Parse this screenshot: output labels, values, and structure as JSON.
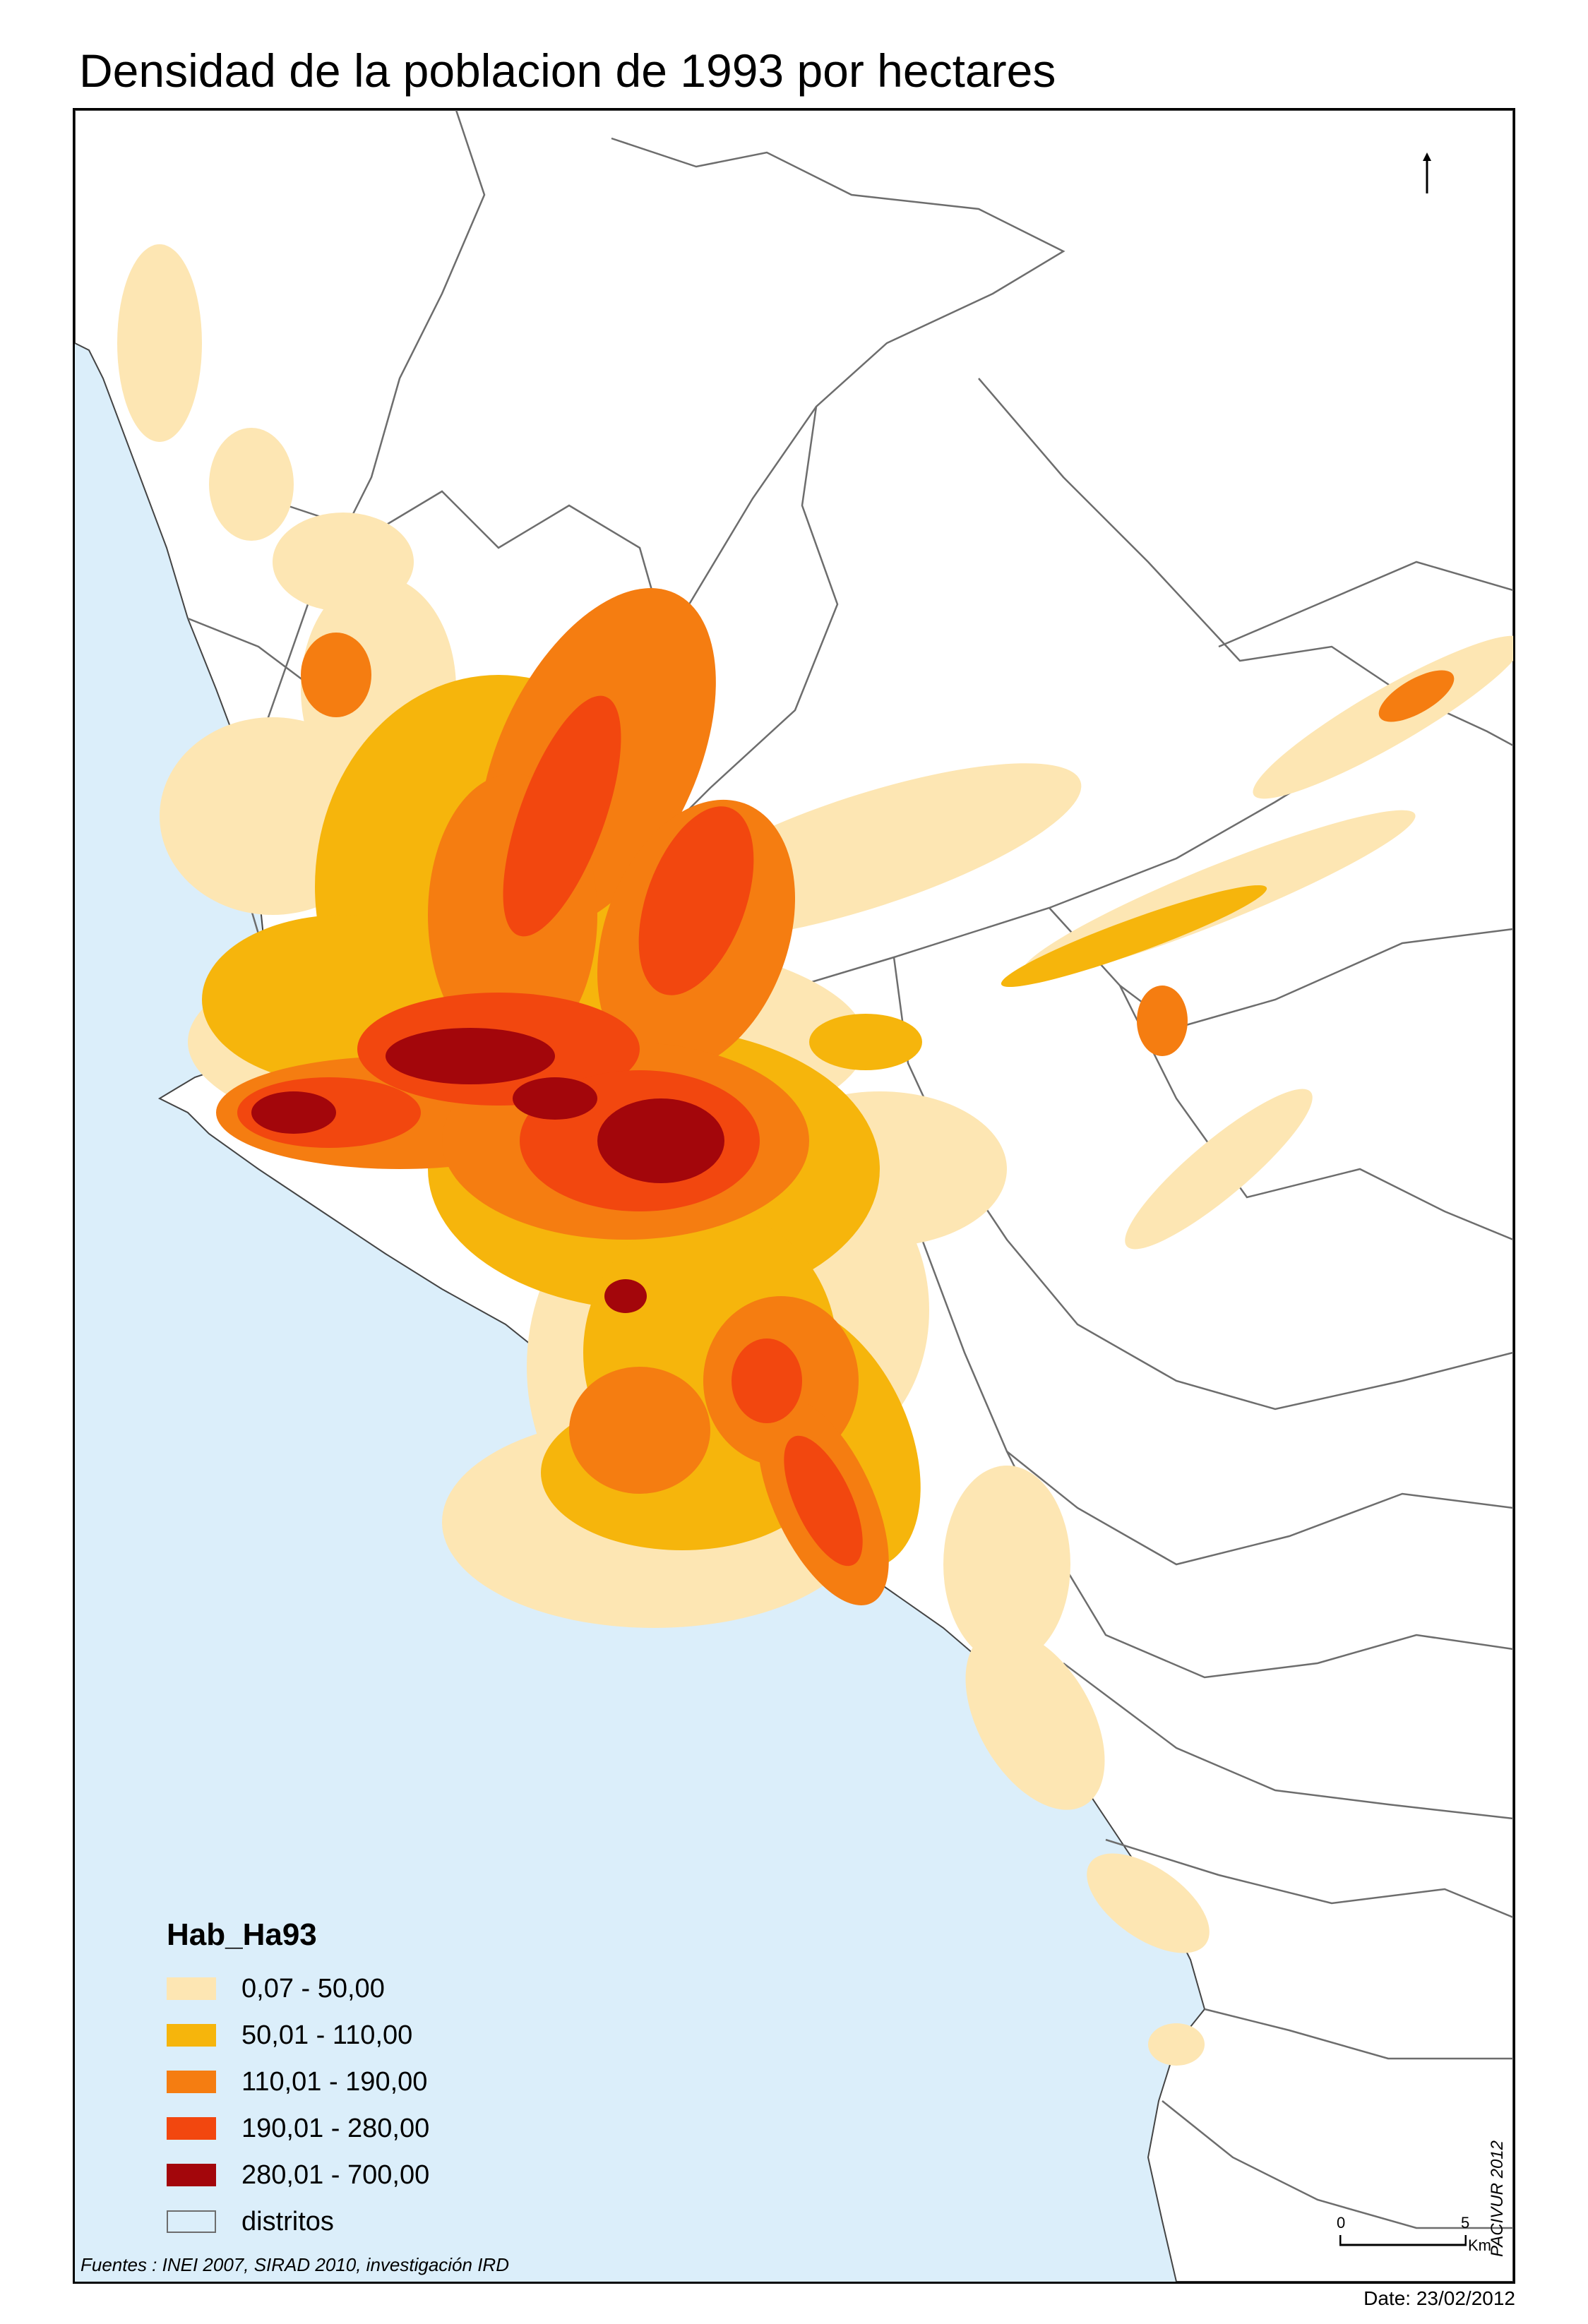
{
  "title": "Densidad de la poblacion de 1993 por hectares",
  "colors": {
    "sea": "#dbeefa",
    "land": "#ffffff",
    "district_border": "#6d6d6d",
    "class_1": "#fde6b3",
    "class_2": "#f6b50c",
    "class_3": "#f57d11",
    "class_4": "#f2470f",
    "class_5": "#a3060b"
  },
  "legend": {
    "title": "Hab_Ha93",
    "items": [
      {
        "label": "0,07 - 50,00",
        "color": "#fde6b3"
      },
      {
        "label": "50,01 - 110,00",
        "color": "#f6b50c"
      },
      {
        "label": "110,01 - 190,00",
        "color": "#f57d11"
      },
      {
        "label": "190,01 - 280,00",
        "color": "#f2470f"
      },
      {
        "label": "280,01 - 700,00",
        "color": "#a3060b"
      },
      {
        "label": "distritos",
        "color": "#dbeefa"
      }
    ]
  },
  "sources": "Fuentes : INEI 2007, SIRAD 2010, investigación IRD",
  "credit": "PACIVUR 2012",
  "scale": {
    "min_label": "0",
    "max_label": "5",
    "unit": "Km"
  },
  "date": "Date: 23/02/2012",
  "north_icon": "north-arrow-icon"
}
